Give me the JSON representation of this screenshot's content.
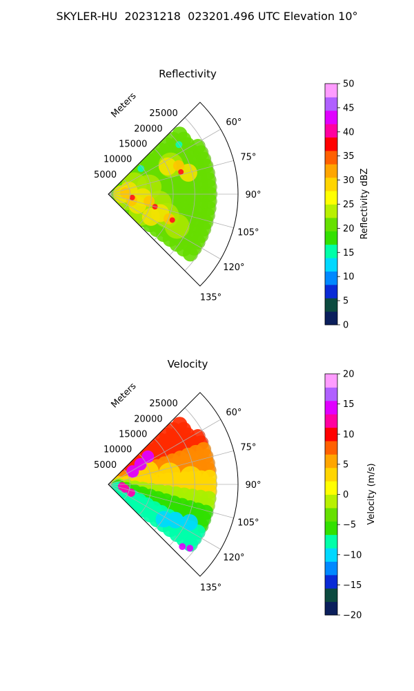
{
  "title": "SKYLER-HU  20231218  023201.496 UTC Elevation 10°",
  "chart_data": [
    {
      "type": "heatmap",
      "projection": "polar sector (PPI)",
      "title": "Reflectivity",
      "radial_label": "Meters",
      "radial_ticks": [
        "5000",
        "10000",
        "15000",
        "20000",
        "25000"
      ],
      "range_max_m": 30000,
      "azimuth_range_deg": [
        45,
        135
      ],
      "azimuth_ticks": [
        "60°",
        "75°",
        "90°",
        "105°",
        "120°",
        "135°"
      ],
      "grid": true,
      "colorbar": {
        "label": "Reflectivity dBZ",
        "min": 0,
        "max": 50,
        "ticks": [
          "0",
          "5",
          "10",
          "15",
          "20",
          "25",
          "30",
          "35",
          "40",
          "45",
          "50"
        ],
        "colors": [
          "#0b1f5c",
          "#0c4a3f",
          "#0a2bd6",
          "#0088ff",
          "#00d8ff",
          "#00ffa8",
          "#33e000",
          "#66e000",
          "#b8f000",
          "#ffff00",
          "#ffd500",
          "#ffa500",
          "#ff6000",
          "#ff0000",
          "#ff00a0",
          "#e000ff",
          "#b060ff",
          "#ff9cff"
        ]
      },
      "features": {
        "colors": [
          "#66dd00",
          "#aee800",
          "#f2e200",
          "#ffc400",
          "#ff7a00",
          "#ff1a1a",
          "#00ffcc",
          "#3399ff"
        ]
      }
    },
    {
      "type": "heatmap",
      "projection": "polar sector (PPI)",
      "title": "Velocity",
      "radial_label": "Meters",
      "radial_ticks": [
        "5000",
        "10000",
        "15000",
        "20000",
        "25000"
      ],
      "range_max_m": 30000,
      "azimuth_range_deg": [
        45,
        135
      ],
      "azimuth_ticks": [
        "60°",
        "75°",
        "90°",
        "105°",
        "120°",
        "135°"
      ],
      "grid": true,
      "colorbar": {
        "label": "Velocity (m/s)",
        "min": -20,
        "max": 20,
        "ticks": [
          "−20",
          "−15",
          "−10",
          "−5",
          "0",
          "5",
          "10",
          "15",
          "20"
        ],
        "colors": [
          "#0b1f5c",
          "#0c4a3f",
          "#0a2bd6",
          "#0088ff",
          "#00d8ff",
          "#00ffa8",
          "#33e000",
          "#66e000",
          "#b8f000",
          "#ffff00",
          "#ffd500",
          "#ffa500",
          "#ff6000",
          "#ff0000",
          "#ff00a0",
          "#e000ff",
          "#b060ff",
          "#ff9cff"
        ]
      },
      "features": {
        "colors": [
          "#ff2a00",
          "#ff8a00",
          "#ffd700",
          "#a8f000",
          "#30e000",
          "#00ffaa",
          "#00d8ff",
          "#e000ff",
          "#ff00b0"
        ]
      }
    }
  ]
}
